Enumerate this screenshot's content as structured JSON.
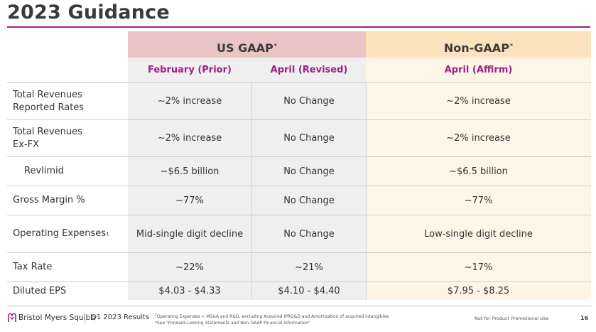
{
  "page": {
    "title": "2023 Guidance"
  },
  "headers": {
    "gaap": "US GAAP",
    "gaap_sup": "*",
    "non_gaap": "Non-GAAP",
    "non_gaap_sup": "*",
    "sub": [
      "February (Prior)",
      "April (Revised)",
      "April (Affirm)"
    ]
  },
  "rows": [
    {
      "label_line1": "Total Revenues",
      "label_line2": "Reported Rates",
      "values": [
        "~2% increase",
        "No Change",
        "~2% increase"
      ]
    },
    {
      "label_line1": "Total Revenues",
      "label_line2": "Ex-FX",
      "values": [
        "~2% increase",
        "No Change",
        "~2% increase"
      ]
    },
    {
      "label_line1": "Revlimid",
      "values": [
        "~$6.5 billion",
        "No Change",
        "~$6.5 billion"
      ]
    },
    {
      "label_line1": "Gross Margin %",
      "values": [
        "~77%",
        "No Change",
        "~77%"
      ]
    },
    {
      "label_line1": "Operating Expenses",
      "label_sup": "1",
      "values": [
        "Mid-single digit decline",
        "No Change",
        "Low-single digit decline"
      ]
    },
    {
      "label_line1": "Tax Rate",
      "values": [
        "~22%",
        "~21%",
        "~17%"
      ]
    },
    {
      "label_line1": "Diluted EPS",
      "values": [
        "$4.03 - $4.33",
        "$4.10 - $4.40",
        "$7.95 - $8.25"
      ]
    }
  ],
  "footer": {
    "logo": "Bristol Myers Squibb",
    "logo_tm": "™",
    "results": "Q1 2023 Results",
    "footnote1_sup": "1",
    "footnote1": "Operating Expenses = MS&A and R&D, excluding Acquired IPRD&D and Amortization of acquired intangibles",
    "footnote2": "*See \"Forward-Looking Statements and Non-GAAP Financial Information\"",
    "disclaimer": "Not for Product Promotional Use",
    "page_number": "16"
  },
  "colors": {
    "accent_magenta": "#a0227f",
    "gaap_header": "#ebc4c6",
    "non_gaap_header": "#fde3bd",
    "gaap_column": "#efefef",
    "non_gaap_column": "#fef5e6"
  },
  "icons": {
    "logo": "bms-logo-icon"
  }
}
